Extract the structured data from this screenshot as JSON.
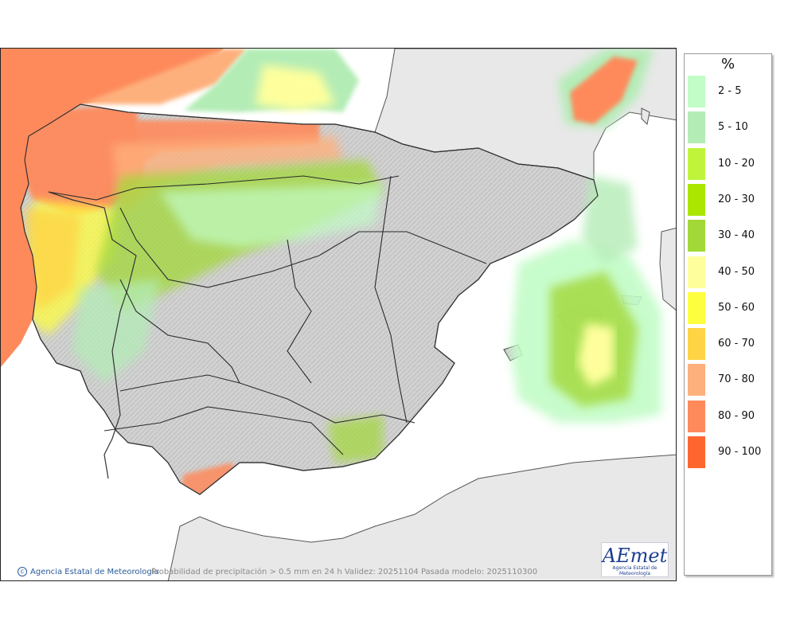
{
  "legend": {
    "unit": "%",
    "items": [
      {
        "label": "2 - 5",
        "color": "#c2fcc7"
      },
      {
        "label": "5 - 10",
        "color": "#b4ecb6"
      },
      {
        "label": "10 - 20",
        "color": "#c0f43c"
      },
      {
        "label": "20 - 30",
        "color": "#aae600"
      },
      {
        "label": "30 - 40",
        "color": "#a2d838"
      },
      {
        "label": "40 - 50",
        "color": "#feff9c"
      },
      {
        "label": "50 - 60",
        "color": "#fefe40"
      },
      {
        "label": "60 - 70",
        "color": "#fed444"
      },
      {
        "label": "70 - 80",
        "color": "#feb07c"
      },
      {
        "label": "80 - 90",
        "color": "#fe8a5c"
      },
      {
        "label": "90 - 100",
        "color": "#fe6630"
      }
    ]
  },
  "map": {
    "sea_color": "#ffffff",
    "foreign_land_color": "#e8e8e8",
    "iberia_relief_color": "#d4d4d4",
    "border_color": "#333333"
  },
  "footer": {
    "credit": "Agencia Estatal de Meteorología",
    "caption": "Probabilidad de precipitación > 0.5 mm en 24 h Validez: 20251104 Pasada modelo: 2025110300"
  },
  "logo": {
    "word": "AEmet",
    "subtitle": "Agencia Estatal de Meteorología"
  }
}
